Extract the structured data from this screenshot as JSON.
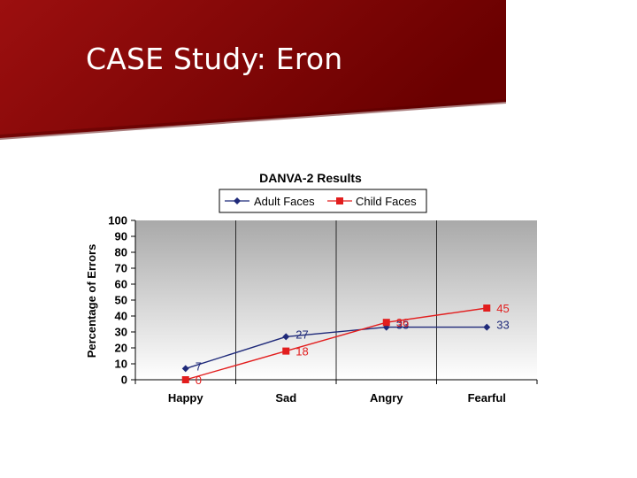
{
  "slide": {
    "title": "CASE Study:  Eron"
  },
  "colors": {
    "banner": "#8b0000",
    "adult": "#1f2a7a",
    "child": "#e21d1d"
  },
  "chart_data": {
    "type": "line",
    "title": "DANVA-2 Results",
    "xlabel": "",
    "ylabel": "Percentage of Errors",
    "categories": [
      "Happy",
      "Sad",
      "Angry",
      "Fearful"
    ],
    "series": [
      {
        "name": "Adult Faces",
        "values": [
          7,
          27,
          33,
          33
        ],
        "color": "#1f2a7a",
        "marker": "diamond"
      },
      {
        "name": "Child Faces",
        "values": [
          0,
          18,
          36,
          45
        ],
        "color": "#e21d1d",
        "marker": "square"
      }
    ],
    "ylim": [
      0,
      100
    ],
    "yticks": [
      0,
      10,
      20,
      30,
      40,
      50,
      60,
      70,
      80,
      90,
      100
    ],
    "grid": "vertical category lines",
    "legend": "top",
    "data_labels": true
  }
}
